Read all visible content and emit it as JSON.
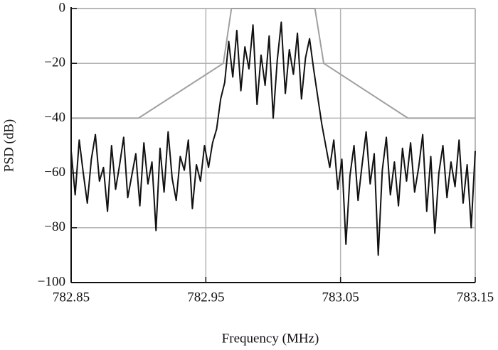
{
  "chart_data": {
    "type": "line",
    "xlabel": "Frequency (MHz)",
    "ylabel": "PSD (dB)",
    "xlim": [
      782.85,
      783.15
    ],
    "ylim": [
      -100,
      0
    ],
    "xticks": [
      782.85,
      782.95,
      783.05,
      783.15
    ],
    "yticks": [
      0,
      {
        "value": -20,
        "label": "−20"
      },
      {
        "value": -40,
        "label": "−40"
      },
      {
        "value": -60,
        "label": "−60"
      },
      {
        "value": -80,
        "label": "−80"
      },
      {
        "value": -100,
        "label": "−100"
      }
    ],
    "grid": true,
    "series": [
      {
        "color": "#111111",
        "x": [
          782.85,
          782.853,
          782.856,
          782.859,
          782.862,
          782.865,
          782.868,
          782.871,
          782.874,
          782.877,
          782.88,
          782.883,
          782.886,
          782.889,
          782.892,
          782.895,
          782.898,
          782.901,
          782.904,
          782.907,
          782.91,
          782.913,
          782.916,
          782.919,
          782.922,
          782.925,
          782.928,
          782.931,
          782.934,
          782.937,
          782.94,
          782.943,
          782.946,
          782.949,
          782.952,
          782.955,
          782.958,
          782.961,
          782.964,
          782.967,
          782.97,
          782.973,
          782.976,
          782.979,
          782.982,
          782.985,
          782.988,
          782.991,
          782.994,
          782.997,
          783.0,
          783.003,
          783.006,
          783.009,
          783.012,
          783.015,
          783.018,
          783.021,
          783.024,
          783.027,
          783.03,
          783.033,
          783.036,
          783.039,
          783.042,
          783.045,
          783.048,
          783.051,
          783.054,
          783.057,
          783.06,
          783.063,
          783.066,
          783.069,
          783.072,
          783.075,
          783.078,
          783.081,
          783.084,
          783.087,
          783.09,
          783.093,
          783.096,
          783.099,
          783.102,
          783.105,
          783.108,
          783.111,
          783.114,
          783.117,
          783.12,
          783.123,
          783.126,
          783.129,
          783.132,
          783.135,
          783.138,
          783.141,
          783.144,
          783.147,
          783.15
        ],
        "values": [
          -52,
          -68,
          -48,
          -60,
          -71,
          -55,
          -46,
          -63,
          -58,
          -74,
          -50,
          -66,
          -57,
          -47,
          -69,
          -61,
          -53,
          -72,
          -49,
          -64,
          -56,
          -81,
          -51,
          -67,
          -45,
          -62,
          -70,
          -54,
          -59,
          -48,
          -73,
          -57,
          -63,
          -50,
          -58,
          -49,
          -44,
          -33,
          -27,
          -12,
          -25,
          -8,
          -30,
          -14,
          -22,
          -6,
          -35,
          -17,
          -28,
          -10,
          -40,
          -19,
          -5,
          -31,
          -15,
          -24,
          -9,
          -33,
          -18,
          -11,
          -22,
          -32,
          -42,
          -50,
          -58,
          -48,
          -66,
          -55,
          -86,
          -61,
          -50,
          -70,
          -57,
          -45,
          -64,
          -53,
          -90,
          -59,
          -47,
          -68,
          -56,
          -72,
          -51,
          -63,
          -49,
          -67,
          -58,
          -46,
          -74,
          -54,
          -82,
          -60,
          -50,
          -69,
          -56,
          -65,
          -48,
          -71,
          -57,
          -80,
          -52
        ]
      },
      {
        "color": "#a0a0a0",
        "x": [
          782.85,
          782.9,
          782.963,
          782.969,
          783.031,
          783.0375,
          783.1,
          783.15
        ],
        "values": [
          -40,
          -40,
          -20,
          0,
          0,
          -20,
          -40,
          -40
        ]
      }
    ]
  }
}
